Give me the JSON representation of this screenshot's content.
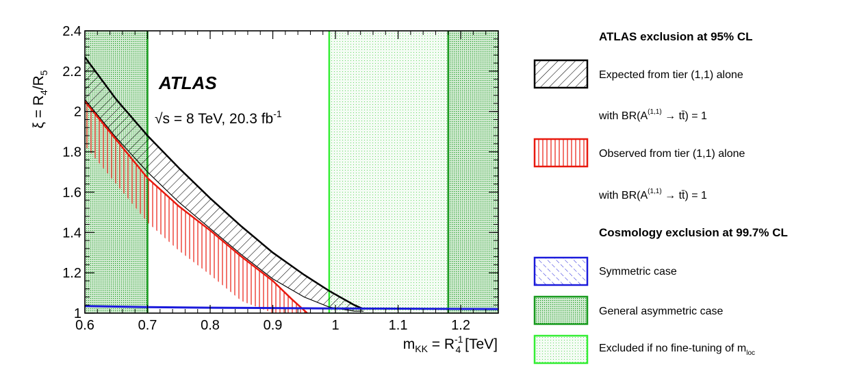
{
  "chart_data": {
    "type": "area",
    "title": "",
    "xlabel": {
      "main": "m",
      "main_sub": "KK",
      "eq": " = R",
      "eq_sub": "4",
      "eq_sup": "-1",
      "unit": " [TeV]"
    },
    "ylabel": {
      "xi": "ξ = R",
      "sub1": "4",
      "slash": "/R",
      "sub2": "5"
    },
    "xlim": [
      0.6,
      1.26
    ],
    "ylim": [
      1.0,
      2.4
    ],
    "x_ticks": [
      0.6,
      0.7,
      0.8,
      0.9,
      1.0,
      1.1,
      1.2
    ],
    "x_tick_labels": [
      "0.6",
      "0.7",
      "0.8",
      "0.9",
      "1",
      "1.1",
      "1.2"
    ],
    "y_ticks": [
      1.0,
      1.2,
      1.4,
      1.6,
      1.8,
      2.0,
      2.2,
      2.4
    ],
    "y_tick_labels": [
      "1",
      "1.2",
      "1.4",
      "1.6",
      "1.8",
      "2",
      "2.2",
      "2.4"
    ],
    "grid": false,
    "legend_position": "right",
    "annotations": {
      "experiment": "ATLAS",
      "energy_prefix": "√s = 8 TeV, 20.3 fb",
      "energy_sup": "-1"
    },
    "series": [
      {
        "name": "Expected from tier (1,1) alone with BR(A(1,1) → tt̄) = 1",
        "style": "black-hatched-band",
        "x": [
          0.6,
          0.65,
          0.7,
          0.75,
          0.8,
          0.85,
          0.9,
          0.95,
          0.99,
          1.03,
          1.045
        ],
        "upper": [
          2.27,
          2.06,
          1.88,
          1.72,
          1.57,
          1.43,
          1.3,
          1.19,
          1.11,
          1.04,
          1.02
        ],
        "lower": [
          2.06,
          1.87,
          1.7,
          1.55,
          1.42,
          1.29,
          1.17,
          1.08,
          1.03,
          1.01,
          1.01
        ]
      },
      {
        "name": "Observed from tier (1,1) alone with BR(A(1,1) → tt̄) = 1",
        "style": "red-line-vertical-hatch",
        "x": [
          0.6,
          0.65,
          0.7,
          0.75,
          0.8,
          0.85,
          0.9,
          0.93,
          0.955
        ],
        "y": [
          2.05,
          1.86,
          1.67,
          1.53,
          1.41,
          1.28,
          1.16,
          1.07,
          1.0
        ]
      },
      {
        "name": "Symmetric case",
        "style": "blue-line",
        "x": [
          0.6,
          0.7,
          0.8,
          0.9,
          1.0,
          1.1,
          1.26
        ],
        "y": [
          1.035,
          1.03,
          1.027,
          1.025,
          1.023,
          1.022,
          1.02
        ]
      },
      {
        "name": "General asymmetric case",
        "style": "dark-green-excluded-region",
        "regions": [
          [
            0.6,
            0.7
          ],
          [
            1.18,
            1.26
          ]
        ]
      },
      {
        "name": "Excluded if no fine-tuning of m_loc",
        "style": "light-green-excluded-region",
        "regions": [
          [
            0.99,
            1.26
          ]
        ]
      }
    ]
  },
  "legend": {
    "heading_atlas": "ATLAS exclusion at 95% CL",
    "expected": "Expected from tier (1,1) alone",
    "br_prefix": "with BR(A",
    "br_sup": "(1,1)",
    "br_suffix": " → tt̄) = 1",
    "observed": "Observed from tier (1,1) alone",
    "heading_cosmo": "Cosmology exclusion at 99.7% CL",
    "symmetric": "Symmetric case",
    "asymmetric": "General asymmetric case",
    "finetune_prefix": "Excluded if no fine-tuning of m",
    "finetune_sub": "loc"
  },
  "colors": {
    "expected": "#000000",
    "observed": "#e8190e",
    "symmetric": "#1a1adb",
    "dark_green": "#179a1d",
    "light_green": "#33ee33",
    "dark_green_fill": "#cfe9cf",
    "light_green_fill": "#f2fbf2"
  }
}
